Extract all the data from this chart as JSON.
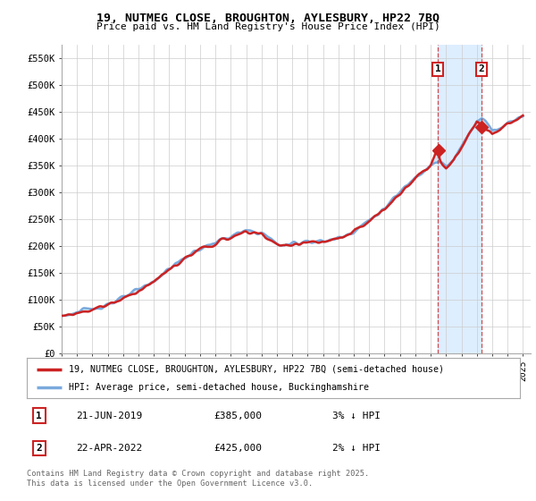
{
  "title_line1": "19, NUTMEG CLOSE, BROUGHTON, AYLESBURY, HP22 7BQ",
  "title_line2": "Price paid vs. HM Land Registry's House Price Index (HPI)",
  "ylabel_ticks": [
    "£0",
    "£50K",
    "£100K",
    "£150K",
    "£200K",
    "£250K",
    "£300K",
    "£350K",
    "£400K",
    "£450K",
    "£500K",
    "£550K"
  ],
  "ytick_values": [
    0,
    50000,
    100000,
    150000,
    200000,
    250000,
    300000,
    350000,
    400000,
    450000,
    500000,
    550000
  ],
  "ylim": [
    0,
    575000
  ],
  "xlim_start": 1995.0,
  "xlim_end": 2025.5,
  "hpi_color": "#7aaadd",
  "price_color": "#cc2222",
  "sale1_date": 2019.47,
  "sale1_price": 385000,
  "sale2_date": 2022.3,
  "sale2_price": 425000,
  "legend_label1": "19, NUTMEG CLOSE, BROUGHTON, AYLESBURY, HP22 7BQ (semi-detached house)",
  "legend_label2": "HPI: Average price, semi-detached house, Buckinghamshire",
  "annotation1_date": "21-JUN-2019",
  "annotation1_price": "£385,000",
  "annotation1_note": "3% ↓ HPI",
  "annotation2_date": "22-APR-2022",
  "annotation2_price": "£425,000",
  "annotation2_note": "2% ↓ HPI",
  "footer": "Contains HM Land Registry data © Crown copyright and database right 2025.\nThis data is licensed under the Open Government Licence v3.0.",
  "background_color": "#ffffff",
  "grid_color": "#cccccc",
  "shade_color": "#ddeeff"
}
